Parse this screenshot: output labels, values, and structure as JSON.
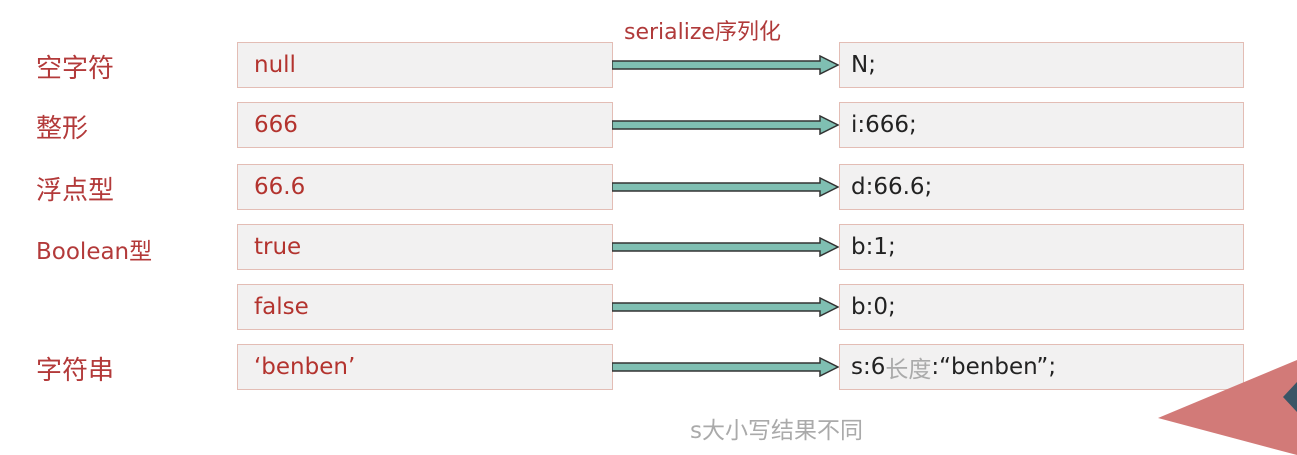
{
  "header": {
    "label": "serialize序列化"
  },
  "rows": [
    {
      "type": "空字符",
      "input": "null",
      "output": "N;",
      "output_hint": "",
      "output_tail": ""
    },
    {
      "type": "整形",
      "input": "666",
      "output": "i:666;",
      "output_hint": "",
      "output_tail": ""
    },
    {
      "type": "浮点型",
      "input": "66.6",
      "output": "d:66.6;",
      "output_hint": "",
      "output_tail": ""
    },
    {
      "type": "Boolean型",
      "input": "true",
      "output": "b:1;",
      "output_hint": "",
      "output_tail": ""
    },
    {
      "type": "",
      "input": "false",
      "output": "b:0;",
      "output_hint": "",
      "output_tail": ""
    },
    {
      "type": "字符串",
      "input": "‘benben’",
      "output": "s:6",
      "output_hint": "长度",
      "output_tail": ":“benben”;"
    }
  ],
  "note": "s大小写结果不同",
  "colors": {
    "label_red": "#b33a3a",
    "arrow_fill": "#7fbfb2",
    "box_fill": "#f2f1f1",
    "box_border": "#e3bdb5",
    "corner_red": "#d27a78",
    "corner_dark": "#3a5566",
    "hint_gray": "#aaaaaa"
  }
}
